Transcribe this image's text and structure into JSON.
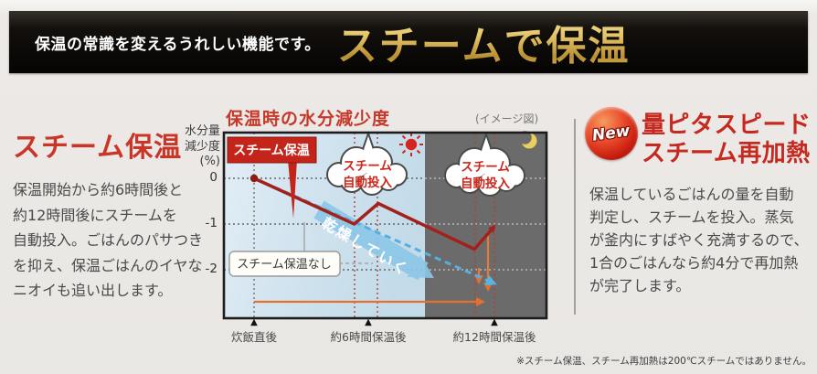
{
  "banner": {
    "tagline": "保温の常識を変えるうれしい機能です。",
    "title": "スチームで保温"
  },
  "left": {
    "heading": "スチーム保温",
    "body": "保温開始から約6時間後と\n約12時間後にスチームを\n自動投入。ごはんのパサつき\nを抑え、保温ごはんのイヤな\nニオイも追い出します。"
  },
  "chart": {
    "title": "保温時の水分減少度",
    "note": "(イメージ図)",
    "y_axis_label": "水分量\n減少度\n(%)",
    "y_ticks": [
      "0",
      "-1",
      "-2"
    ],
    "x_ticks": [
      "炊飯直後",
      "約6時間保温後",
      "約12時間保温後"
    ],
    "labels": {
      "steam": "スチーム保温",
      "no_steam": "スチーム保温なし",
      "inject_line1": "スチーム",
      "inject_line2": "自動投入",
      "drying": "乾燥していく"
    }
  },
  "right": {
    "badge": "New",
    "heading": "量ピタスピード\nスチーム再加熱",
    "body": "保温しているごはんの量を自動\n判定し、スチームを投入。蒸気\nが釜内にすばやく充満するので、\n1合のごはんなら約4分で再加熱\nが完了します。"
  },
  "footnote": "※スチーム保温、スチーム再加熱は200℃スチームではありません。",
  "chart_data": {
    "type": "line",
    "title": "保温時の水分減少度",
    "subtitle": "(イメージ図)",
    "ylabel": "水分量減少度(%)",
    "yticks": [
      0,
      -1,
      -2
    ],
    "ylim": [
      -2.6,
      0.4
    ],
    "xlabel": "",
    "x_tick_labels": [
      "炊飯直後",
      "約6時間保温後",
      "約12時間保温後"
    ],
    "x_tick_hours": [
      0,
      6,
      12
    ],
    "grid": true,
    "day_night_boundary_hours": 8.5,
    "series": [
      {
        "name": "スチーム保温",
        "style": "solid",
        "color": "#a3211a",
        "x": [
          0,
          5.0,
          6.2,
          11.0,
          12.0
        ],
        "y": [
          0,
          -1.0,
          -0.55,
          -1.55,
          -1.05
        ]
      },
      {
        "name": "スチーム保温なし",
        "style": "dashed",
        "color": "#58aede",
        "x": [
          0,
          12.0
        ],
        "y": [
          0,
          -2.3
        ]
      }
    ],
    "annotations": [
      "スチーム自動投入（約6時間保温後）",
      "スチーム自動投入（約12時間保温後）",
      "乾燥していく"
    ]
  }
}
